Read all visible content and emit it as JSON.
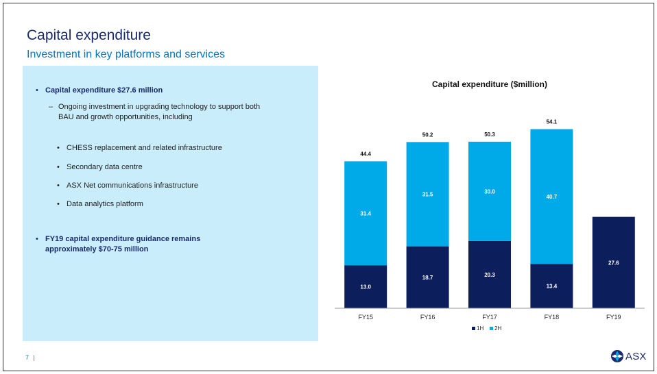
{
  "slide": {
    "title": "Capital expenditure",
    "subtitle": "Investment in key platforms and services",
    "page_number": "7",
    "page_separator": "|",
    "logo_text": "ASX"
  },
  "content": {
    "bullet1": "Capital expenditure $27.6 million",
    "sub1": "Ongoing investment in upgrading technology to support both BAU and growth opportunities, including",
    "items": [
      "CHESS replacement and related infrastructure",
      "Secondary data centre",
      "ASX Net communications infrastructure",
      "Data analytics platform"
    ],
    "bullet2": "FY19 capital expenditure guidance remains approximately $70-75 million"
  },
  "colors": {
    "series_1h": "#0c1f5c",
    "series_2h": "#00a9e8",
    "title": "#1a2a6c",
    "subtitle": "#0077c8",
    "panel": "#c9edfb"
  },
  "chart_data": {
    "type": "bar",
    "stacked": true,
    "title": "Capital expenditure ($million)",
    "categories": [
      "FY15",
      "FY16",
      "FY17",
      "FY18",
      "FY19"
    ],
    "series": [
      {
        "name": "1H",
        "values": [
          13.0,
          18.7,
          20.3,
          13.4,
          27.6
        ]
      },
      {
        "name": "2H",
        "values": [
          31.4,
          31.5,
          30.0,
          40.7,
          null
        ]
      }
    ],
    "totals": [
      44.4,
      50.2,
      50.3,
      54.1,
      null
    ],
    "ylim": [
      0,
      60
    ],
    "legend": "bottom",
    "grid": false
  }
}
